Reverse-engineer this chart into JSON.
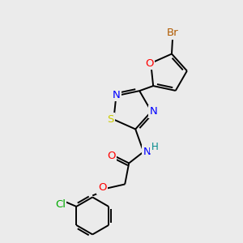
{
  "bg_color": "#ebebeb",
  "bond_color": "#000000",
  "atom_colors": {
    "Br": "#b05a00",
    "O": "#ff0000",
    "N": "#0000ff",
    "S": "#cccc00",
    "H": "#008b8b",
    "Cl": "#00aa00"
  },
  "figsize": [
    3.0,
    3.0
  ],
  "dpi": 100,
  "lw": 1.4,
  "fontsize": 9.5
}
